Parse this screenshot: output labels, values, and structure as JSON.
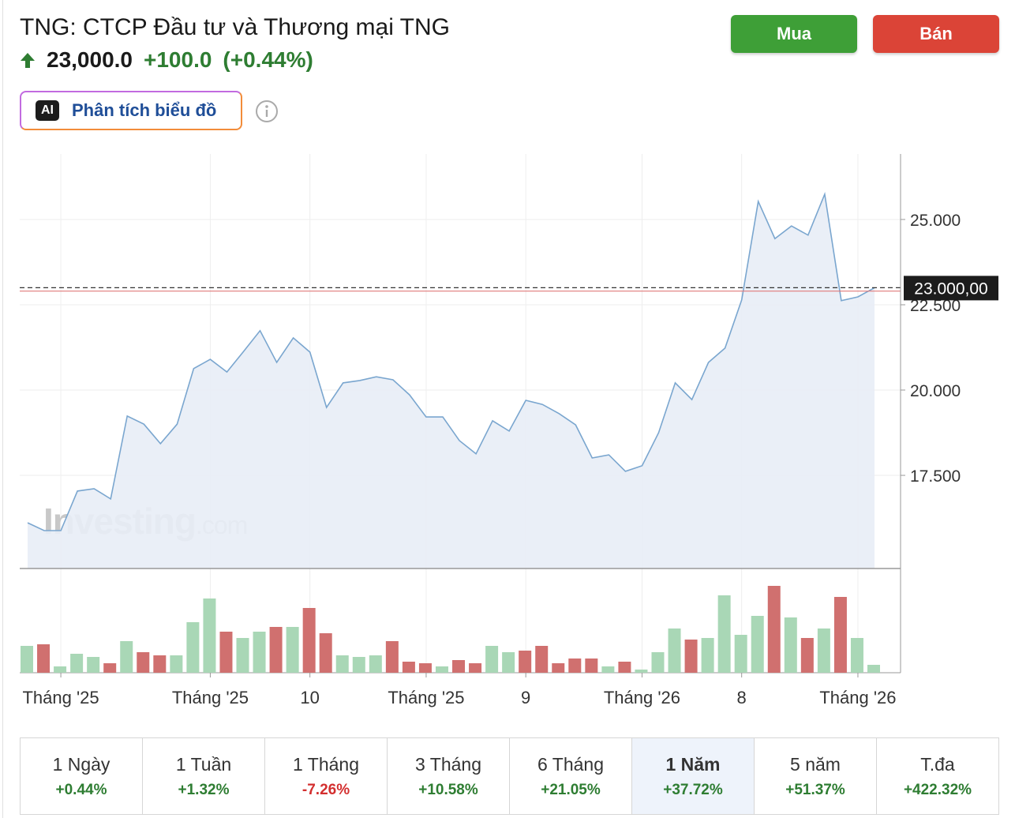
{
  "header": {
    "title": "TNG: CTCP Đầu tư và Thương mại TNG",
    "price": "23,000.0",
    "change": "+100.0",
    "change_pct": "(+0.44%)",
    "buy": "Mua",
    "sell": "Bán",
    "ai_badge": "AI",
    "analyze": "Phân tích biểu đồ"
  },
  "watermark": {
    "brand": "Investing",
    "suffix": ".com"
  },
  "chart_data": {
    "type": "line",
    "color": "#7aa6cf",
    "area_color": "#e8edf6",
    "grid": true,
    "categories": [
      null,
      null,
      "Tháng '25",
      null,
      null,
      null,
      null,
      null,
      null,
      null,
      null,
      "Tháng '25",
      null,
      null,
      null,
      null,
      null,
      "10",
      null,
      null,
      null,
      null,
      null,
      null,
      "Tháng '25",
      null,
      null,
      null,
      null,
      null,
      "9",
      null,
      null,
      null,
      null,
      null,
      null,
      "Tháng '26",
      null,
      null,
      null,
      null,
      null,
      "8",
      null,
      null,
      null,
      null,
      null,
      null,
      "Tháng '26",
      null
    ],
    "values": [
      16110,
      15880,
      15880,
      17040,
      17110,
      16810,
      19240,
      19000,
      18430,
      19000,
      20630,
      20900,
      20530,
      21130,
      21740,
      20810,
      21530,
      21110,
      19490,
      20210,
      20280,
      20390,
      20300,
      19860,
      19210,
      19210,
      18520,
      18130,
      19100,
      18800,
      19700,
      19580,
      19310,
      18980,
      18010,
      18100,
      17620,
      17780,
      18750,
      20210,
      19720,
      20810,
      21230,
      22640,
      25530,
      24440,
      24810,
      24540,
      25740,
      22620,
      22730,
      23000
    ],
    "ylim": [
      14770,
      26920
    ],
    "yticks": [
      {
        "value": 17500,
        "label": "17.500"
      },
      {
        "value": 20000,
        "label": "20.000"
      },
      {
        "value": 22500,
        "label": "22.500"
      },
      {
        "value": 25000,
        "label": "25.000"
      }
    ],
    "last_price": {
      "value": 23000,
      "label": "23.000,00"
    },
    "reference_line": {
      "value": 22900,
      "color": "#e07a7a"
    },
    "volume": {
      "ylim": [
        0,
        120
      ],
      "values": [
        34,
        36,
        8,
        24,
        20,
        12,
        40,
        26,
        22,
        22,
        64,
        94,
        52,
        44,
        52,
        58,
        58,
        82,
        50,
        22,
        20,
        22,
        40,
        14,
        12,
        8,
        16,
        12,
        34,
        26,
        28,
        34,
        12,
        18,
        18,
        8,
        14,
        4,
        26,
        56,
        42,
        44,
        98,
        48,
        72,
        110,
        70,
        44,
        56,
        96,
        44,
        10
      ],
      "colors": [
        "#a9d7b6",
        "#d0706f",
        "#a9d7b6",
        "#a9d7b6",
        "#a9d7b6",
        "#d0706f",
        "#a9d7b6",
        "#d0706f",
        "#d0706f",
        "#a9d7b6",
        "#a9d7b6",
        "#a9d7b6",
        "#d0706f",
        "#a9d7b6",
        "#a9d7b6",
        "#d0706f",
        "#a9d7b6",
        "#d0706f",
        "#d0706f",
        "#a9d7b6",
        "#a9d7b6",
        "#a9d7b6",
        "#d0706f",
        "#d0706f",
        "#d0706f",
        "#a9d7b6",
        "#d0706f",
        "#d0706f",
        "#a9d7b6",
        "#a9d7b6",
        "#d0706f",
        "#d0706f",
        "#d0706f",
        "#d0706f",
        "#d0706f",
        "#a9d7b6",
        "#d0706f",
        "#a9d7b6",
        "#a9d7b6",
        "#a9d7b6",
        "#d0706f",
        "#a9d7b6",
        "#a9d7b6",
        "#a9d7b6",
        "#a9d7b6",
        "#d0706f",
        "#a9d7b6",
        "#d0706f",
        "#a9d7b6",
        "#d0706f",
        "#a9d7b6",
        "#a9d7b6"
      ]
    }
  },
  "periods": [
    {
      "label": "1 Ngày",
      "change": "+0.44%"
    },
    {
      "label": "1 Tuần",
      "change": "+1.32%"
    },
    {
      "label": "1 Tháng",
      "change": "-7.26%"
    },
    {
      "label": "3 Tháng",
      "change": "+10.58%"
    },
    {
      "label": "6 Tháng",
      "change": "+21.05%"
    },
    {
      "label": "1 Năm",
      "change": "+37.72%"
    },
    {
      "label": "5 năm",
      "change": "+51.37%"
    },
    {
      "label": "T.đa",
      "change": "+422.32%"
    }
  ],
  "selected_period": 5
}
